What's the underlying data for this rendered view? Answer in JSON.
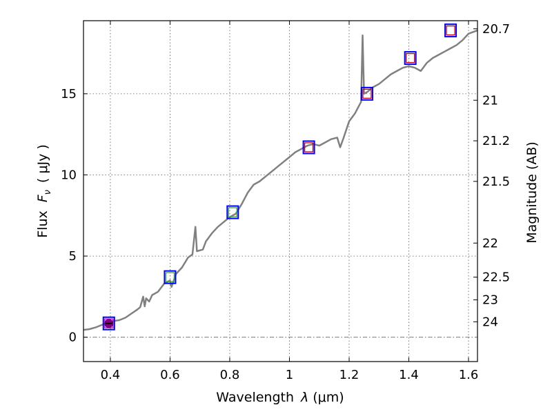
{
  "chart_data": {
    "type": "scatter",
    "xlabel_text": "Wavelength",
    "xlabel_symbol": "λ",
    "xlabel_unit": "(μm)",
    "ylabel_text": "Flux",
    "ylabel_symbol": "F",
    "ylabel_subscript": "ν",
    "ylabel_unit": "( μJy )",
    "y2label": "Magnitude (AB)",
    "xlim": [
      0.31,
      1.63
    ],
    "ylim": [
      -1.5,
      19.5
    ],
    "grid": true,
    "x_ticks": [
      {
        "value": 0.4,
        "label": "0.4"
      },
      {
        "value": 0.6,
        "label": "0.6"
      },
      {
        "value": 0.8,
        "label": "0.8"
      },
      {
        "value": 1.0,
        "label": "1"
      },
      {
        "value": 1.2,
        "label": "1.2"
      },
      {
        "value": 1.4,
        "label": "1.4"
      },
      {
        "value": 1.6,
        "label": "1.6"
      }
    ],
    "y_ticks": [
      {
        "value": 0,
        "label": "0"
      },
      {
        "value": 5,
        "label": "5"
      },
      {
        "value": 10,
        "label": "10"
      },
      {
        "value": 15,
        "label": "15"
      }
    ],
    "y2_ticks": [
      {
        "flux": 19.0,
        "label": "20.7"
      },
      {
        "flux": 14.6,
        "label": "21"
      },
      {
        "flux": 12.1,
        "label": "21.2"
      },
      {
        "flux": 9.6,
        "label": "21.5"
      },
      {
        "flux": 5.8,
        "label": "22"
      },
      {
        "flux": 3.7,
        "label": "22.5"
      },
      {
        "flux": 2.3,
        "label": "23"
      },
      {
        "flux": 0.95,
        "label": "24"
      }
    ],
    "series": [
      {
        "name": "spectrum",
        "style": "line",
        "color": "#808080",
        "points": [
          [
            0.31,
            0.45
          ],
          [
            0.33,
            0.5
          ],
          [
            0.35,
            0.6
          ],
          [
            0.37,
            0.75
          ],
          [
            0.39,
            0.9
          ],
          [
            0.41,
            1.0
          ],
          [
            0.43,
            1.05
          ],
          [
            0.45,
            1.2
          ],
          [
            0.47,
            1.45
          ],
          [
            0.49,
            1.7
          ],
          [
            0.5,
            1.85
          ],
          [
            0.51,
            2.5
          ],
          [
            0.515,
            1.9
          ],
          [
            0.52,
            2.4
          ],
          [
            0.53,
            2.2
          ],
          [
            0.54,
            2.6
          ],
          [
            0.56,
            2.8
          ],
          [
            0.58,
            3.3
          ],
          [
            0.6,
            3.5
          ],
          [
            0.605,
            3.1
          ],
          [
            0.62,
            3.9
          ],
          [
            0.64,
            4.3
          ],
          [
            0.66,
            4.9
          ],
          [
            0.675,
            5.1
          ],
          [
            0.685,
            6.8
          ],
          [
            0.69,
            5.3
          ],
          [
            0.71,
            5.4
          ],
          [
            0.72,
            5.9
          ],
          [
            0.74,
            6.4
          ],
          [
            0.76,
            6.8
          ],
          [
            0.78,
            7.1
          ],
          [
            0.8,
            7.4
          ],
          [
            0.82,
            7.6
          ],
          [
            0.84,
            8.2
          ],
          [
            0.86,
            8.9
          ],
          [
            0.88,
            9.4
          ],
          [
            0.9,
            9.6
          ],
          [
            0.92,
            9.9
          ],
          [
            0.94,
            10.2
          ],
          [
            0.96,
            10.5
          ],
          [
            0.98,
            10.8
          ],
          [
            1.0,
            11.1
          ],
          [
            1.02,
            11.4
          ],
          [
            1.04,
            11.6
          ],
          [
            1.06,
            11.8
          ],
          [
            1.08,
            11.9
          ],
          [
            1.1,
            11.8
          ],
          [
            1.12,
            12.0
          ],
          [
            1.14,
            12.2
          ],
          [
            1.16,
            12.3
          ],
          [
            1.17,
            11.7
          ],
          [
            1.18,
            12.2
          ],
          [
            1.2,
            13.3
          ],
          [
            1.22,
            13.8
          ],
          [
            1.24,
            14.5
          ],
          [
            1.245,
            18.6
          ],
          [
            1.25,
            15.0
          ],
          [
            1.26,
            15.1
          ],
          [
            1.28,
            15.4
          ],
          [
            1.3,
            15.6
          ],
          [
            1.32,
            15.9
          ],
          [
            1.34,
            16.2
          ],
          [
            1.36,
            16.4
          ],
          [
            1.38,
            16.6
          ],
          [
            1.4,
            16.7
          ],
          [
            1.42,
            16.6
          ],
          [
            1.44,
            16.4
          ],
          [
            1.46,
            16.9
          ],
          [
            1.48,
            17.2
          ],
          [
            1.5,
            17.4
          ],
          [
            1.52,
            17.6
          ],
          [
            1.54,
            17.8
          ],
          [
            1.56,
            18.0
          ],
          [
            1.58,
            18.3
          ],
          [
            1.6,
            18.7
          ],
          [
            1.63,
            18.9
          ]
        ]
      },
      {
        "name": "photometry-box",
        "style": "blue-square",
        "color": "#0000ff",
        "points": [
          [
            0.395,
            0.85
          ],
          [
            0.6,
            3.7
          ],
          [
            0.81,
            7.7
          ],
          [
            1.065,
            11.7
          ],
          [
            1.26,
            15.0
          ],
          [
            1.405,
            17.2
          ],
          [
            1.54,
            18.9
          ]
        ]
      },
      {
        "name": "model-square",
        "style": "colored-square",
        "points": [
          {
            "x": 0.395,
            "y": 0.85,
            "color": "#cc00cc"
          },
          {
            "x": 0.6,
            "y": 3.7,
            "color": "#33aa33"
          },
          {
            "x": 0.81,
            "y": 7.7,
            "color": "#33aa33"
          },
          {
            "x": 1.065,
            "y": 11.7,
            "color": "#cc0000"
          },
          {
            "x": 1.26,
            "y": 15.0,
            "color": "#cc0000"
          },
          {
            "x": 1.405,
            "y": 17.2,
            "color": "#cc0000"
          },
          {
            "x": 1.54,
            "y": 18.9,
            "color": "#cc0000"
          }
        ]
      },
      {
        "name": "detection-marker",
        "style": "filled-circle",
        "color": "#800080",
        "points": [
          [
            0.395,
            0.85
          ]
        ]
      }
    ]
  }
}
